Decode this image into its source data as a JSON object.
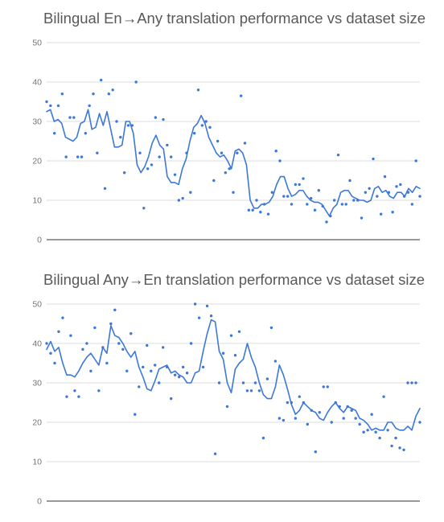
{
  "chart_data": [
    {
      "type": "scatter",
      "title": "Bilingual En→Any translation performance vs dataset size",
      "xlabel": "",
      "ylabel": "",
      "ylim": [
        0,
        50
      ],
      "yticks": [
        0,
        10,
        20,
        30,
        40,
        50
      ],
      "grid": true,
      "legend": "none",
      "color": "#3c78d8",
      "series": [
        {
          "kind": "points",
          "values": [
            35,
            34,
            27,
            34,
            37,
            21,
            31,
            31,
            21,
            21,
            27,
            34,
            37,
            22,
            40.5,
            13,
            37,
            38,
            30,
            26,
            17,
            29,
            29,
            40,
            22,
            8,
            18,
            19,
            31,
            21,
            30.5,
            24,
            21,
            16.5,
            10,
            10.5,
            22,
            12,
            27,
            38,
            29,
            30,
            28.5,
            15,
            25,
            22,
            17,
            18,
            12,
            22,
            36.5,
            24.5,
            7.5,
            7.5,
            10,
            7,
            9,
            6.5,
            12,
            22.5,
            20,
            11,
            11,
            9,
            14,
            14,
            15.5,
            9,
            10.5,
            7.5,
            12.5,
            8.5,
            4.5,
            6,
            10,
            21.5,
            9,
            9,
            15,
            10,
            10,
            5.5,
            12,
            13,
            20.5,
            11,
            6.5,
            16,
            12,
            7,
            13.5,
            14,
            11,
            12,
            9,
            20,
            11
          ]
        },
        {
          "kind": "trend",
          "values": [
            32.5,
            33,
            30,
            30.5,
            29.5,
            26,
            25.5,
            25,
            26,
            29.5,
            30,
            33,
            28,
            28.5,
            32,
            29,
            32.5,
            28,
            23.5,
            23.5,
            24,
            30,
            30,
            27,
            19,
            17,
            18.5,
            21,
            24.5,
            26.5,
            24,
            23,
            16,
            14.5,
            14.5,
            14,
            18,
            20.5,
            25,
            28.5,
            29.5,
            31.5,
            29.5,
            26,
            24,
            22,
            21,
            21.5,
            20,
            18,
            22.5,
            23,
            22,
            19,
            10,
            8,
            8,
            9,
            9,
            9.5,
            11,
            14,
            16,
            16,
            13,
            11,
            11.5,
            12.5,
            12.5,
            11,
            10,
            9.5,
            9.5,
            9,
            7.5,
            6,
            8,
            9,
            12,
            12.5,
            12.5,
            11,
            10.5,
            10,
            10,
            9.5,
            10,
            13,
            13.5,
            12,
            12.5,
            11,
            10.5,
            12,
            12,
            11,
            13,
            12,
            13.5,
            13
          ]
        }
      ]
    },
    {
      "type": "scatter",
      "title": "Bilingual Any→En translation performance vs dataset size",
      "xlabel": "",
      "ylabel": "",
      "ylim": [
        0,
        50
      ],
      "yticks": [
        0,
        10,
        20,
        30,
        40,
        50
      ],
      "grid": true,
      "legend": "none",
      "color": "#3c78d8",
      "series": [
        {
          "kind": "points",
          "values": [
            40,
            37.5,
            35,
            43,
            46.5,
            26.5,
            42,
            28,
            26.5,
            38.5,
            40,
            33,
            44,
            28,
            39,
            35,
            45,
            48.5,
            40,
            38.5,
            33,
            42.5,
            22,
            29,
            34,
            39.5,
            33,
            34.5,
            30,
            39,
            34,
            26,
            32,
            31.5,
            34,
            32.5,
            40,
            50,
            46.5,
            34,
            49.5,
            47,
            12,
            30,
            37.5,
            24,
            42,
            37,
            43,
            30,
            28,
            28,
            30,
            28,
            16,
            31,
            44,
            35.5,
            21,
            20.5,
            25,
            25,
            21,
            26.5,
            25,
            19.5,
            23,
            12.5,
            22.5,
            29,
            29,
            20,
            25,
            24,
            21,
            24,
            23,
            21,
            19.5,
            17.5,
            18,
            22,
            17.5,
            16,
            26.5,
            18,
            14,
            16,
            13.5,
            13,
            30,
            30,
            30,
            20
          ]
        },
        {
          "kind": "trend",
          "values": [
            38.5,
            40.5,
            38,
            39,
            35,
            32,
            32,
            31.5,
            33,
            35,
            36.5,
            37.5,
            36,
            34.5,
            39,
            37.5,
            44.5,
            42,
            41.5,
            40,
            38,
            36.5,
            38,
            34,
            31.5,
            28.5,
            28,
            30.5,
            33.5,
            34,
            34.5,
            32.5,
            33,
            32,
            31.5,
            30,
            30,
            32.5,
            33,
            38,
            42.5,
            46,
            45.5,
            38,
            36,
            30,
            27.5,
            33.5,
            35,
            36,
            40,
            36.5,
            34,
            30,
            27,
            26,
            26,
            29,
            34.5,
            32,
            28.5,
            24.5,
            22,
            23,
            25,
            24,
            23,
            22.5,
            21,
            20.5,
            22.5,
            24,
            25,
            23.5,
            22.5,
            24,
            23.5,
            23,
            21,
            20.5,
            19.5,
            18,
            18.5,
            18,
            18,
            20,
            20,
            18.5,
            18,
            18,
            19,
            18,
            21.5,
            23.5
          ]
        }
      ]
    }
  ]
}
